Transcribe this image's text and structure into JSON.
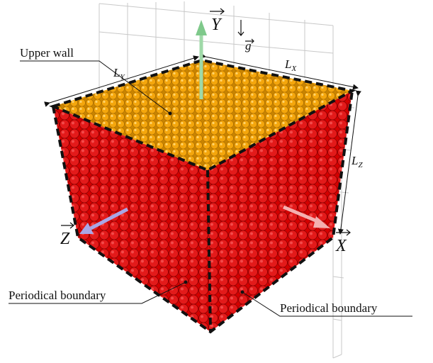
{
  "labels": {
    "upper_wall": "Upper wall",
    "periodical_boundary_left": "Periodical boundary",
    "periodical_boundary_right": "Periodical boundary"
  },
  "dimensions": {
    "lx": {
      "symbol": "L",
      "subscript": "X"
    },
    "ly": {
      "symbol": "L",
      "subscript": "Y"
    },
    "lz": {
      "symbol": "L",
      "subscript": "Z"
    }
  },
  "axes": {
    "x": "X",
    "y": "Y",
    "z": "Z"
  },
  "gravity": "g"
}
